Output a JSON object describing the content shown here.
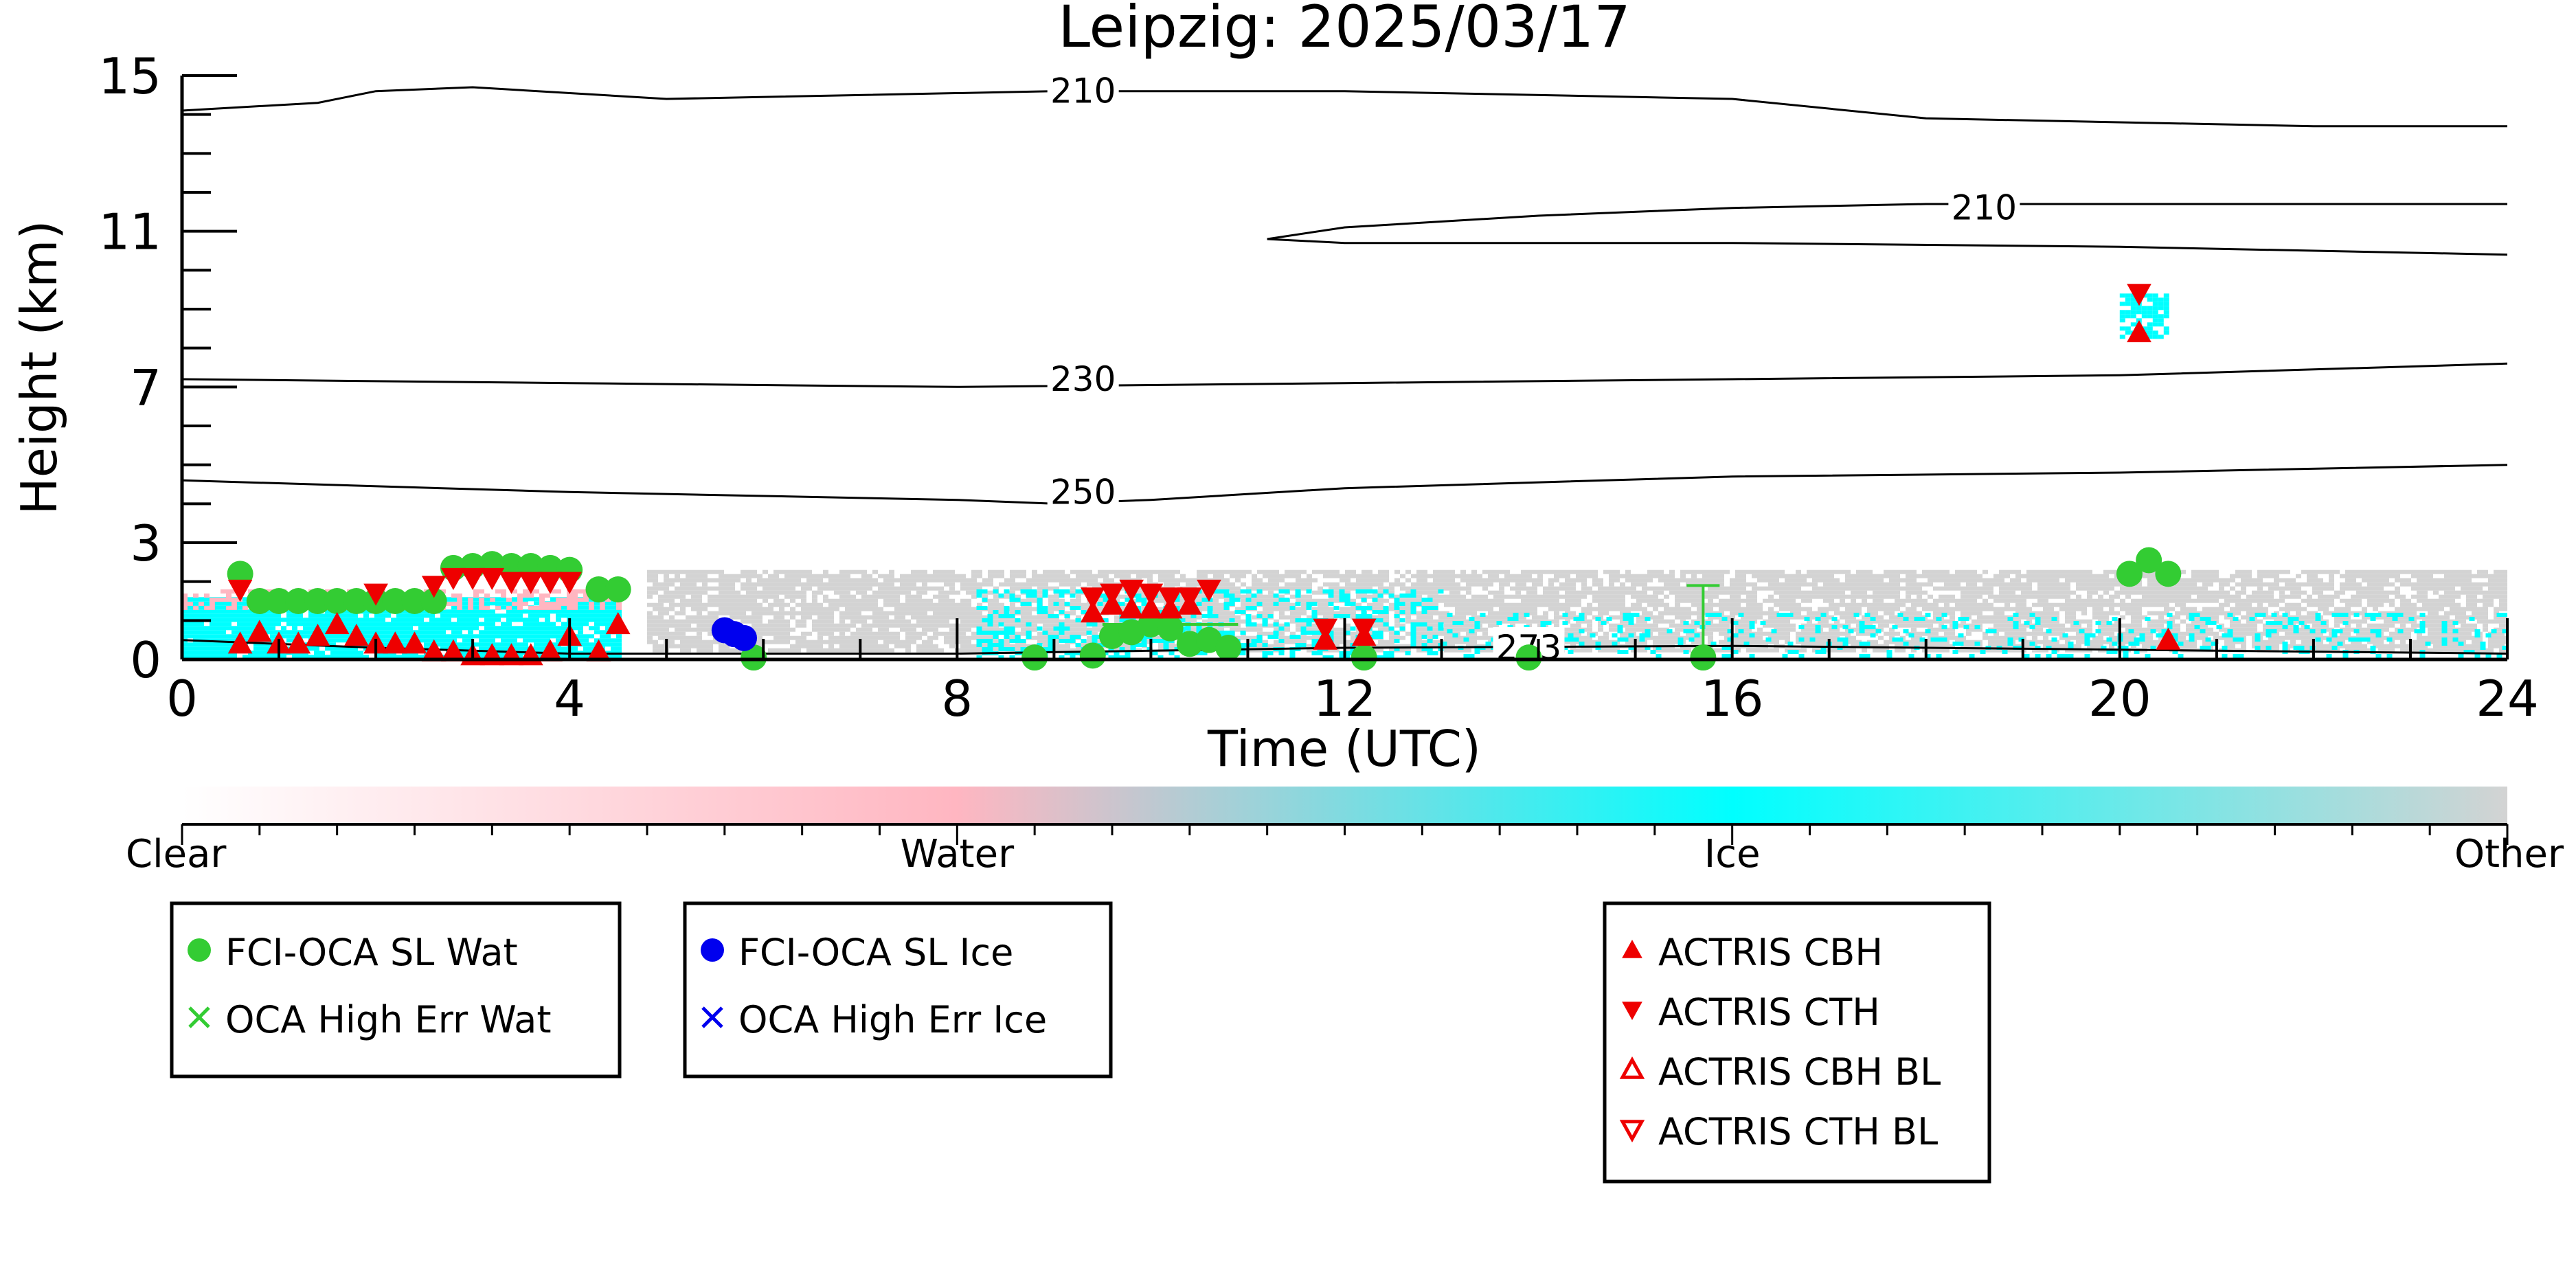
{
  "chart_data": {
    "type": "scatter",
    "title": "Leipzig: 2025/03/17",
    "xlabel": "Time (UTC)",
    "ylabel": "Height (km)",
    "xlim": [
      0,
      24
    ],
    "ylim": [
      0,
      15
    ],
    "x_ticks": [
      0,
      4,
      8,
      12,
      16,
      20,
      24
    ],
    "y_ticks": [
      0,
      3,
      7,
      11,
      15
    ],
    "grid": false,
    "colorbar": {
      "labels": [
        "Clear",
        "Water",
        "Ice",
        "Other"
      ],
      "colors": [
        "#ffffff",
        "#ffb6c1",
        "#00ffff",
        "#d3d3d3"
      ]
    },
    "temperature_contours": [
      {
        "label": "210",
        "label_at": [
          9.3,
          14.6
        ],
        "points": [
          [
            0,
            14.1
          ],
          [
            1.4,
            14.3
          ],
          [
            2,
            14.6
          ],
          [
            3,
            14.7
          ],
          [
            5,
            14.4
          ],
          [
            9,
            14.6
          ],
          [
            12,
            14.6
          ],
          [
            16,
            14.4
          ],
          [
            18,
            13.9
          ],
          [
            22,
            13.7
          ],
          [
            24,
            13.7
          ]
        ]
      },
      {
        "label": "210",
        "label_at": [
          18.6,
          11.6
        ],
        "points": [
          [
            11.2,
            10.8
          ],
          [
            12,
            11.1
          ],
          [
            14,
            11.4
          ],
          [
            16,
            11.6
          ],
          [
            18,
            11.7
          ],
          [
            22,
            11.7
          ],
          [
            24,
            11.7
          ]
        ]
      },
      {
        "label": "",
        "label_at": null,
        "points": [
          [
            11.2,
            10.8
          ],
          [
            12,
            10.7
          ],
          [
            16,
            10.7
          ],
          [
            20,
            10.6
          ],
          [
            24,
            10.4
          ]
        ]
      },
      {
        "label": "230",
        "label_at": [
          9.3,
          7.2
        ],
        "points": [
          [
            0,
            7.2
          ],
          [
            4,
            7.1
          ],
          [
            8,
            7.0
          ],
          [
            12,
            7.1
          ],
          [
            16,
            7.2
          ],
          [
            20,
            7.3
          ],
          [
            24,
            7.6
          ]
        ]
      },
      {
        "label": "250",
        "label_at": [
          9.3,
          4.3
        ],
        "points": [
          [
            0,
            4.6
          ],
          [
            4,
            4.3
          ],
          [
            8,
            4.1
          ],
          [
            9,
            4.0
          ],
          [
            10,
            4.1
          ],
          [
            12,
            4.4
          ],
          [
            16,
            4.7
          ],
          [
            20,
            4.8
          ],
          [
            24,
            5.0
          ]
        ]
      },
      {
        "label": "273",
        "label_at": [
          13.9,
          0.3
        ],
        "points": [
          [
            0,
            0.5
          ],
          [
            2,
            0.3
          ],
          [
            4,
            0.15
          ],
          [
            8,
            0.15
          ],
          [
            12,
            0.3
          ],
          [
            16,
            0.35
          ],
          [
            20,
            0.25
          ],
          [
            24,
            0.15
          ]
        ]
      }
    ],
    "cloud_mask_regions": [
      {
        "class": "Other",
        "x": [
          4.8,
          24
        ],
        "y": [
          0.2,
          2.3
        ],
        "density": 0.8
      },
      {
        "class": "Ice",
        "x": [
          0,
          4.5
        ],
        "y": [
          0.1,
          1.6
        ],
        "density": 0.9
      },
      {
        "class": "Water",
        "x": [
          0,
          4.5
        ],
        "y": [
          1.3,
          1.8
        ],
        "density": 0.5
      },
      {
        "class": "Ice",
        "x": [
          8.2,
          13
        ],
        "y": [
          0.1,
          1.8
        ],
        "density": 0.35
      },
      {
        "class": "Ice",
        "x": [
          13,
          24
        ],
        "y": [
          0.1,
          1.2
        ],
        "density": 0.2
      },
      {
        "class": "Ice",
        "x": [
          20,
          20.5
        ],
        "y": [
          8.3,
          9.4
        ],
        "density": 0.7
      }
    ],
    "series": [
      {
        "name": "FCI-OCA SL Wat",
        "marker": "circle",
        "color": "#33cc33",
        "points": [
          [
            0.6,
            2.2
          ],
          [
            0.8,
            1.5
          ],
          [
            1.0,
            1.5
          ],
          [
            1.2,
            1.5
          ],
          [
            1.4,
            1.5
          ],
          [
            1.6,
            1.5
          ],
          [
            1.8,
            1.5
          ],
          [
            2.0,
            1.5
          ],
          [
            2.2,
            1.5
          ],
          [
            2.4,
            1.5
          ],
          [
            2.6,
            1.5
          ],
          [
            2.8,
            2.35
          ],
          [
            3.0,
            2.4
          ],
          [
            3.2,
            2.45
          ],
          [
            3.4,
            2.4
          ],
          [
            3.6,
            2.4
          ],
          [
            3.8,
            2.35
          ],
          [
            4.0,
            2.3
          ],
          [
            4.3,
            1.8
          ],
          [
            4.5,
            1.8
          ],
          [
            5.9,
            0.05
          ],
          [
            8.8,
            0.05
          ],
          [
            9.4,
            0.1
          ],
          [
            9.6,
            0.6
          ],
          [
            9.8,
            0.7
          ],
          [
            10.0,
            0.9
          ],
          [
            10.2,
            0.8
          ],
          [
            10.4,
            0.4
          ],
          [
            10.6,
            0.5
          ],
          [
            10.8,
            0.3
          ],
          [
            12.2,
            0.05
          ],
          [
            13.9,
            0.05
          ],
          [
            15.7,
            0.05
          ],
          [
            20.1,
            2.2
          ],
          [
            20.3,
            2.55
          ],
          [
            20.5,
            2.2
          ]
        ],
        "error_bars": [
          [
            2.7,
            3.8,
            2.4
          ],
          [
            9.5,
            10.9,
            0.9
          ],
          [
            15.7,
            15.7,
            0.1,
            1.9
          ]
        ]
      },
      {
        "name": "FCI-OCA SL Ice",
        "marker": "circle",
        "color": "#0000ee",
        "points": [
          [
            5.6,
            0.75
          ],
          [
            5.7,
            0.65
          ],
          [
            5.8,
            0.55
          ]
        ]
      },
      {
        "name": "OCA High Err Wat",
        "marker": "x",
        "color": "#33cc33",
        "points": []
      },
      {
        "name": "OCA High Err Ice",
        "marker": "x",
        "color": "#0000ee",
        "points": []
      },
      {
        "name": "ACTRIS CBH",
        "marker": "triangle-up",
        "color": "#ee0000",
        "points": [
          [
            0.6,
            0.4
          ],
          [
            0.8,
            0.7
          ],
          [
            1.0,
            0.4
          ],
          [
            1.2,
            0.4
          ],
          [
            1.4,
            0.6
          ],
          [
            1.6,
            0.9
          ],
          [
            1.8,
            0.6
          ],
          [
            2.0,
            0.4
          ],
          [
            2.2,
            0.4
          ],
          [
            2.4,
            0.4
          ],
          [
            2.6,
            0.2
          ],
          [
            2.8,
            0.2
          ],
          [
            3.0,
            0.1
          ],
          [
            3.2,
            0.1
          ],
          [
            3.4,
            0.1
          ],
          [
            3.6,
            0.1
          ],
          [
            3.8,
            0.2
          ],
          [
            4.0,
            0.6
          ],
          [
            4.3,
            0.2
          ],
          [
            4.5,
            0.9
          ],
          [
            9.4,
            1.2
          ],
          [
            9.6,
            1.4
          ],
          [
            9.8,
            1.3
          ],
          [
            10.0,
            1.3
          ],
          [
            10.2,
            1.3
          ],
          [
            10.4,
            1.4
          ],
          [
            11.8,
            0.5
          ],
          [
            12.2,
            0.6
          ],
          [
            20.2,
            8.4
          ],
          [
            20.5,
            0.5
          ]
        ]
      },
      {
        "name": "ACTRIS CTH",
        "marker": "triangle-down",
        "color": "#ee0000",
        "points": [
          [
            0.6,
            1.8
          ],
          [
            2.0,
            1.7
          ],
          [
            2.6,
            1.9
          ],
          [
            2.8,
            2.1
          ],
          [
            3.0,
            2.1
          ],
          [
            3.2,
            2.1
          ],
          [
            3.4,
            2.0
          ],
          [
            3.6,
            2.0
          ],
          [
            3.8,
            2.0
          ],
          [
            4.0,
            2.0
          ],
          [
            9.4,
            1.6
          ],
          [
            9.6,
            1.7
          ],
          [
            9.8,
            1.8
          ],
          [
            10.0,
            1.7
          ],
          [
            10.2,
            1.6
          ],
          [
            10.4,
            1.6
          ],
          [
            10.6,
            1.8
          ],
          [
            11.8,
            0.8
          ],
          [
            12.2,
            0.8
          ],
          [
            20.2,
            9.4
          ]
        ]
      },
      {
        "name": "ACTRIS CBH BL",
        "marker": "triangle-up-open",
        "color": "#ee0000",
        "points": []
      },
      {
        "name": "ACTRIS CTH BL",
        "marker": "triangle-down-open",
        "color": "#ee0000",
        "points": []
      }
    ],
    "legend_groups": [
      {
        "placement": "bottom-left",
        "entries": [
          "FCI-OCA SL Wat",
          "OCA High Err Wat"
        ]
      },
      {
        "placement": "bottom-left",
        "entries": [
          "FCI-OCA SL Ice",
          "OCA High Err Ice"
        ]
      },
      {
        "placement": "bottom-center",
        "entries": [
          "ACTRIS CBH",
          "ACTRIS CTH",
          "ACTRIS CBH BL",
          "ACTRIS CTH BL"
        ]
      }
    ]
  }
}
